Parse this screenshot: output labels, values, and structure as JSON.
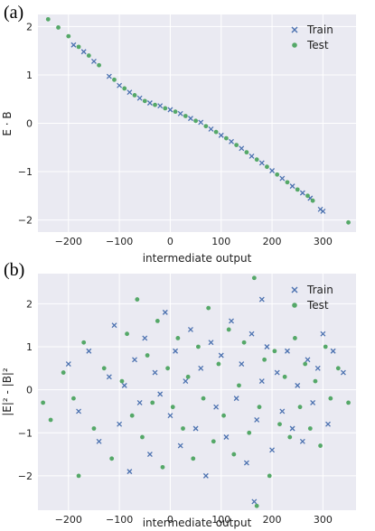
{
  "chart_data": [
    {
      "type": "scatter",
      "panel_label": "(a)",
      "xlabel": "intermediate output",
      "ylabel": "E · B",
      "xlim": [
        -260,
        365
      ],
      "ylim": [
        -2.25,
        2.25
      ],
      "xticks": [
        -200,
        -100,
        0,
        100,
        200,
        300
      ],
      "yticks": [
        2,
        1,
        0,
        -1,
        -2
      ],
      "xtick_labels": [
        "−200",
        "−100",
        "0",
        "100",
        "200",
        "300"
      ],
      "ytick_labels": [
        "2",
        "1",
        "0",
        "−1",
        "−2"
      ],
      "grid": true,
      "legend_position": "top-right",
      "series": [
        {
          "name": "Train",
          "marker": "x",
          "color": "#4c72b0",
          "points": [
            [
              -190,
              1.62
            ],
            [
              -170,
              1.48
            ],
            [
              -150,
              1.28
            ],
            [
              -120,
              0.97
            ],
            [
              -100,
              0.78
            ],
            [
              -80,
              0.64
            ],
            [
              -60,
              0.52
            ],
            [
              -40,
              0.42
            ],
            [
              -20,
              0.36
            ],
            [
              0,
              0.28
            ],
            [
              20,
              0.2
            ],
            [
              40,
              0.1
            ],
            [
              60,
              0.02
            ],
            [
              80,
              -0.12
            ],
            [
              100,
              -0.25
            ],
            [
              120,
              -0.38
            ],
            [
              140,
              -0.52
            ],
            [
              160,
              -0.68
            ],
            [
              180,
              -0.82
            ],
            [
              200,
              -0.98
            ],
            [
              220,
              -1.14
            ],
            [
              240,
              -1.3
            ],
            [
              260,
              -1.44
            ],
            [
              275,
              -1.55
            ],
            [
              295,
              -1.78
            ],
            [
              300,
              -1.82
            ]
          ]
        },
        {
          "name": "Test",
          "marker": "o",
          "color": "#55a868",
          "points": [
            [
              -240,
              2.15
            ],
            [
              -220,
              1.98
            ],
            [
              -200,
              1.8
            ],
            [
              -180,
              1.58
            ],
            [
              -160,
              1.4
            ],
            [
              -140,
              1.2
            ],
            [
              -110,
              0.9
            ],
            [
              -90,
              0.72
            ],
            [
              -70,
              0.58
            ],
            [
              -50,
              0.46
            ],
            [
              -30,
              0.38
            ],
            [
              -10,
              0.31
            ],
            [
              10,
              0.24
            ],
            [
              30,
              0.15
            ],
            [
              50,
              0.05
            ],
            [
              70,
              -0.06
            ],
            [
              90,
              -0.18
            ],
            [
              110,
              -0.31
            ],
            [
              130,
              -0.45
            ],
            [
              150,
              -0.6
            ],
            [
              170,
              -0.75
            ],
            [
              190,
              -0.9
            ],
            [
              210,
              -1.06
            ],
            [
              230,
              -1.22
            ],
            [
              250,
              -1.37
            ],
            [
              270,
              -1.5
            ],
            [
              280,
              -1.6
            ],
            [
              350,
              -2.05
            ]
          ]
        }
      ]
    },
    {
      "type": "scatter",
      "panel_label": "(b)",
      "xlabel": "intermediate output",
      "ylabel": "|E|² - |B|²",
      "xlim": [
        -260,
        365
      ],
      "ylim": [
        -2.8,
        2.7
      ],
      "xticks": [
        -200,
        -100,
        0,
        100,
        200,
        300
      ],
      "yticks": [
        2,
        1,
        0,
        -1,
        -2
      ],
      "xtick_labels": [
        "−200",
        "−100",
        "0",
        "100",
        "200",
        "300"
      ],
      "ytick_labels": [
        "2",
        "1",
        "0",
        "−1",
        "−2"
      ],
      "grid": true,
      "legend_position": "top-right",
      "series": [
        {
          "name": "Train",
          "marker": "x",
          "color": "#4c72b0",
          "points": [
            [
              -200,
              0.6
            ],
            [
              -180,
              -0.5
            ],
            [
              -160,
              0.9
            ],
            [
              -140,
              -1.2
            ],
            [
              -120,
              0.3
            ],
            [
              -110,
              1.5
            ],
            [
              -100,
              -0.8
            ],
            [
              -90,
              0.1
            ],
            [
              -80,
              -1.9
            ],
            [
              -70,
              0.7
            ],
            [
              -60,
              -0.3
            ],
            [
              -50,
              1.2
            ],
            [
              -40,
              -1.5
            ],
            [
              -30,
              0.4
            ],
            [
              -20,
              -0.1
            ],
            [
              -10,
              1.8
            ],
            [
              0,
              -0.6
            ],
            [
              10,
              0.9
            ],
            [
              20,
              -1.3
            ],
            [
              30,
              0.2
            ],
            [
              40,
              1.4
            ],
            [
              50,
              -0.9
            ],
            [
              60,
              0.5
            ],
            [
              70,
              -2.0
            ],
            [
              80,
              1.1
            ],
            [
              90,
              -0.4
            ],
            [
              100,
              0.8
            ],
            [
              110,
              -1.1
            ],
            [
              120,
              1.6
            ],
            [
              130,
              -0.2
            ],
            [
              140,
              0.6
            ],
            [
              150,
              -1.7
            ],
            [
              160,
              1.3
            ],
            [
              170,
              -0.7
            ],
            [
              180,
              0.2
            ],
            [
              190,
              1.0
            ],
            [
              200,
              -1.4
            ],
            [
              210,
              0.4
            ],
            [
              220,
              -0.5
            ],
            [
              230,
              0.9
            ],
            [
              240,
              -0.9
            ],
            [
              250,
              0.1
            ],
            [
              260,
              -1.2
            ],
            [
              270,
              0.7
            ],
            [
              280,
              -0.3
            ],
            [
              290,
              0.5
            ],
            [
              300,
              1.3
            ],
            [
              310,
              -0.8
            ],
            [
              320,
              0.9
            ],
            [
              340,
              0.4
            ],
            [
              165,
              -2.6
            ],
            [
              180,
              2.1
            ]
          ]
        },
        {
          "name": "Test",
          "marker": "o",
          "color": "#55a868",
          "points": [
            [
              -250,
              -0.3
            ],
            [
              -235,
              -0.7
            ],
            [
              -210,
              0.4
            ],
            [
              -190,
              -0.2
            ],
            [
              -170,
              1.1
            ],
            [
              -150,
              -0.9
            ],
            [
              -130,
              0.5
            ],
            [
              -115,
              -1.6
            ],
            [
              -95,
              0.2
            ],
            [
              -85,
              1.3
            ],
            [
              -75,
              -0.6
            ],
            [
              -65,
              2.1
            ],
            [
              -55,
              -1.1
            ],
            [
              -45,
              0.8
            ],
            [
              -35,
              -0.3
            ],
            [
              -25,
              1.6
            ],
            [
              -15,
              -1.8
            ],
            [
              -5,
              0.5
            ],
            [
              5,
              -0.4
            ],
            [
              15,
              1.2
            ],
            [
              25,
              -0.9
            ],
            [
              35,
              0.3
            ],
            [
              45,
              -1.6
            ],
            [
              55,
              1.0
            ],
            [
              65,
              -0.2
            ],
            [
              75,
              1.9
            ],
            [
              85,
              -1.2
            ],
            [
              95,
              0.6
            ],
            [
              105,
              -0.6
            ],
            [
              115,
              1.4
            ],
            [
              125,
              -1.5
            ],
            [
              135,
              0.1
            ],
            [
              145,
              1.1
            ],
            [
              155,
              -1.0
            ],
            [
              165,
              2.6
            ],
            [
              175,
              -0.4
            ],
            [
              185,
              0.7
            ],
            [
              195,
              -2.0
            ],
            [
              205,
              0.9
            ],
            [
              215,
              -0.8
            ],
            [
              225,
              0.3
            ],
            [
              235,
              -1.1
            ],
            [
              245,
              1.2
            ],
            [
              255,
              -0.4
            ],
            [
              265,
              0.6
            ],
            [
              275,
              -0.9
            ],
            [
              285,
              0.2
            ],
            [
              295,
              -1.3
            ],
            [
              305,
              1.0
            ],
            [
              315,
              -0.2
            ],
            [
              330,
              0.5
            ],
            [
              350,
              -0.3
            ],
            [
              -180,
              -2.0
            ],
            [
              170,
              -2.7
            ]
          ]
        }
      ]
    }
  ]
}
